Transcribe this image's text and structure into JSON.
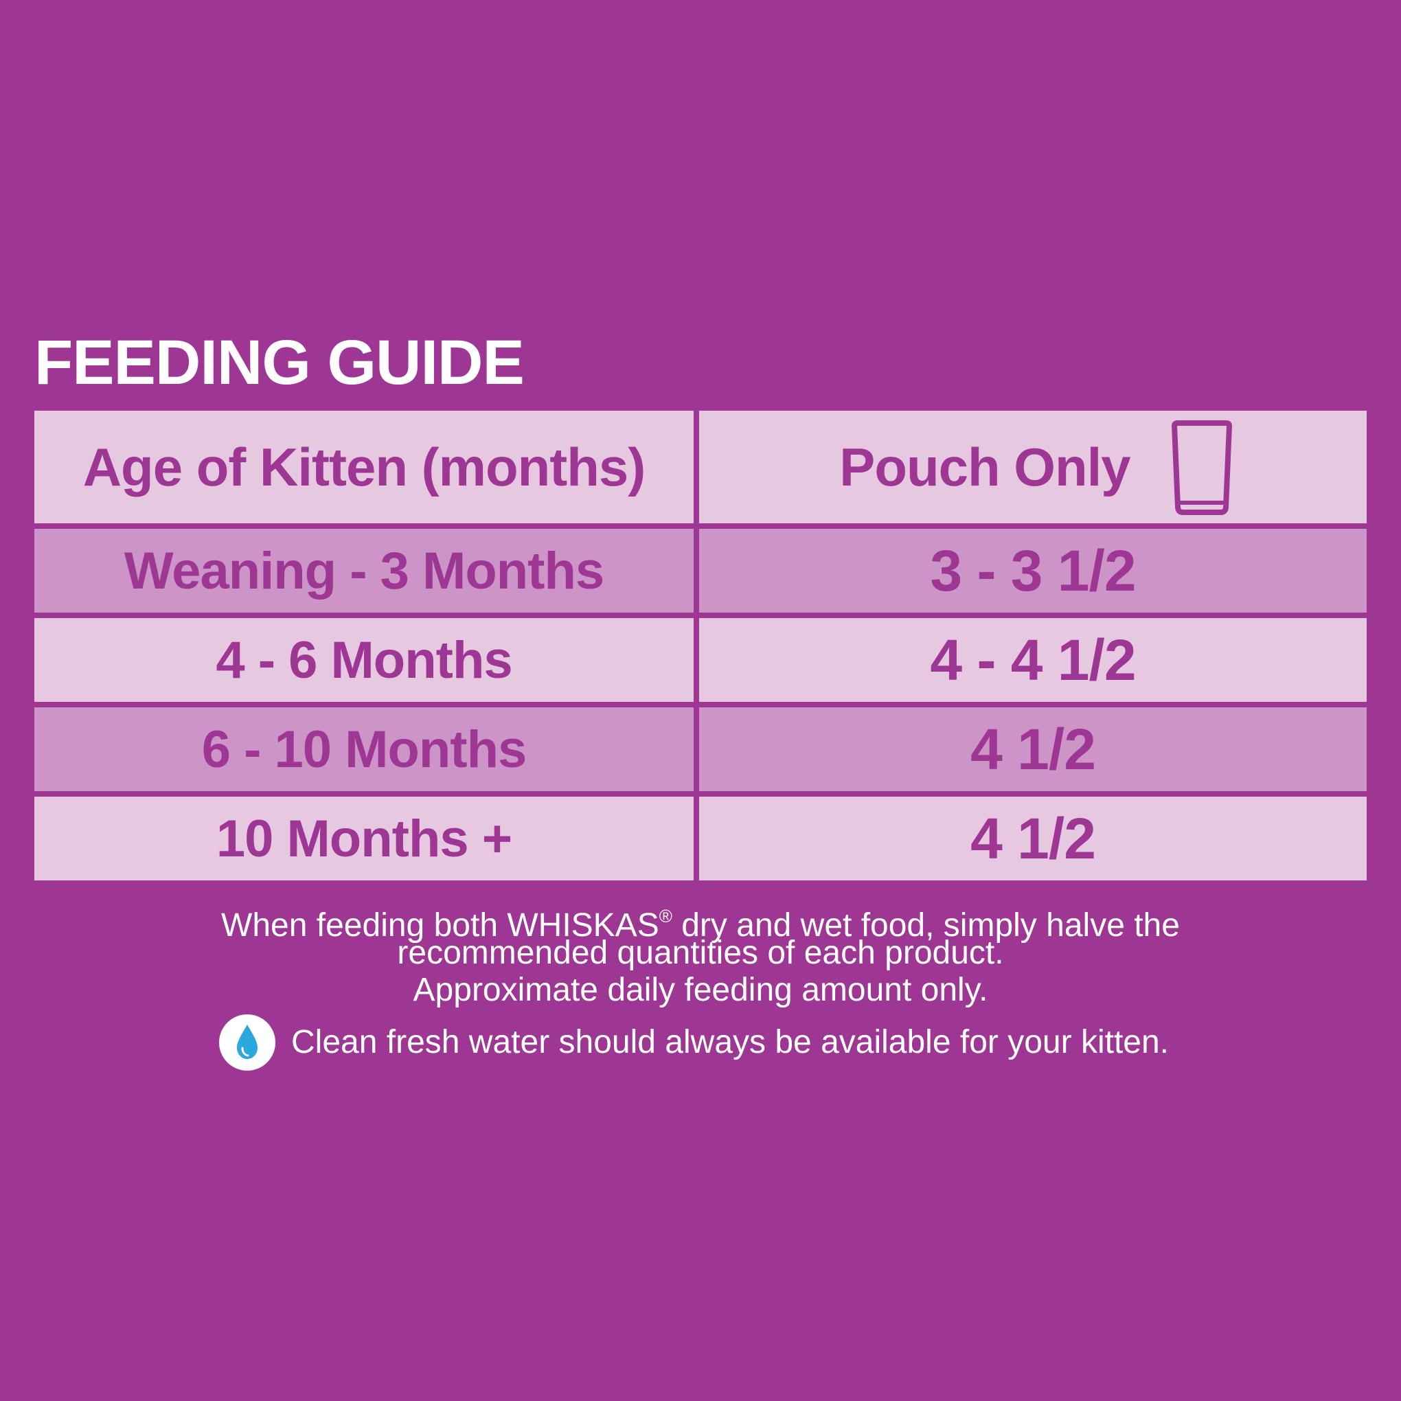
{
  "title": "FEEDING GUIDE",
  "table": {
    "headers": {
      "age": "Age of Kitten (months)",
      "pouch": "Pouch Only"
    },
    "rows": [
      {
        "age": "Weaning - 3 Months",
        "pouch": "3 - 3 1/2"
      },
      {
        "age": "4 - 6 Months",
        "pouch": "4 - 4 1/2"
      },
      {
        "age": "6 - 10 Months",
        "pouch": "4 1/2"
      },
      {
        "age": "10 Months +",
        "pouch": "4 1/2"
      }
    ]
  },
  "notes": {
    "line1_before": "When feeding both WHISKAS",
    "line1_mark": "®",
    "line1_after": " dry and wet food, simply halve the",
    "line2": "recommended quantities of each product.",
    "line3": "Approximate daily feeding amount only.",
    "water": "Clean fresh water should always be available for your kitten."
  },
  "icons": {
    "pouch": "pouch-icon",
    "water": "water-drop-icon"
  },
  "colors": {
    "background": "#9e3694",
    "row_light": "#e6c8e1",
    "row_mid": "#cd95c7",
    "water_drop": "#2aa7dc"
  }
}
